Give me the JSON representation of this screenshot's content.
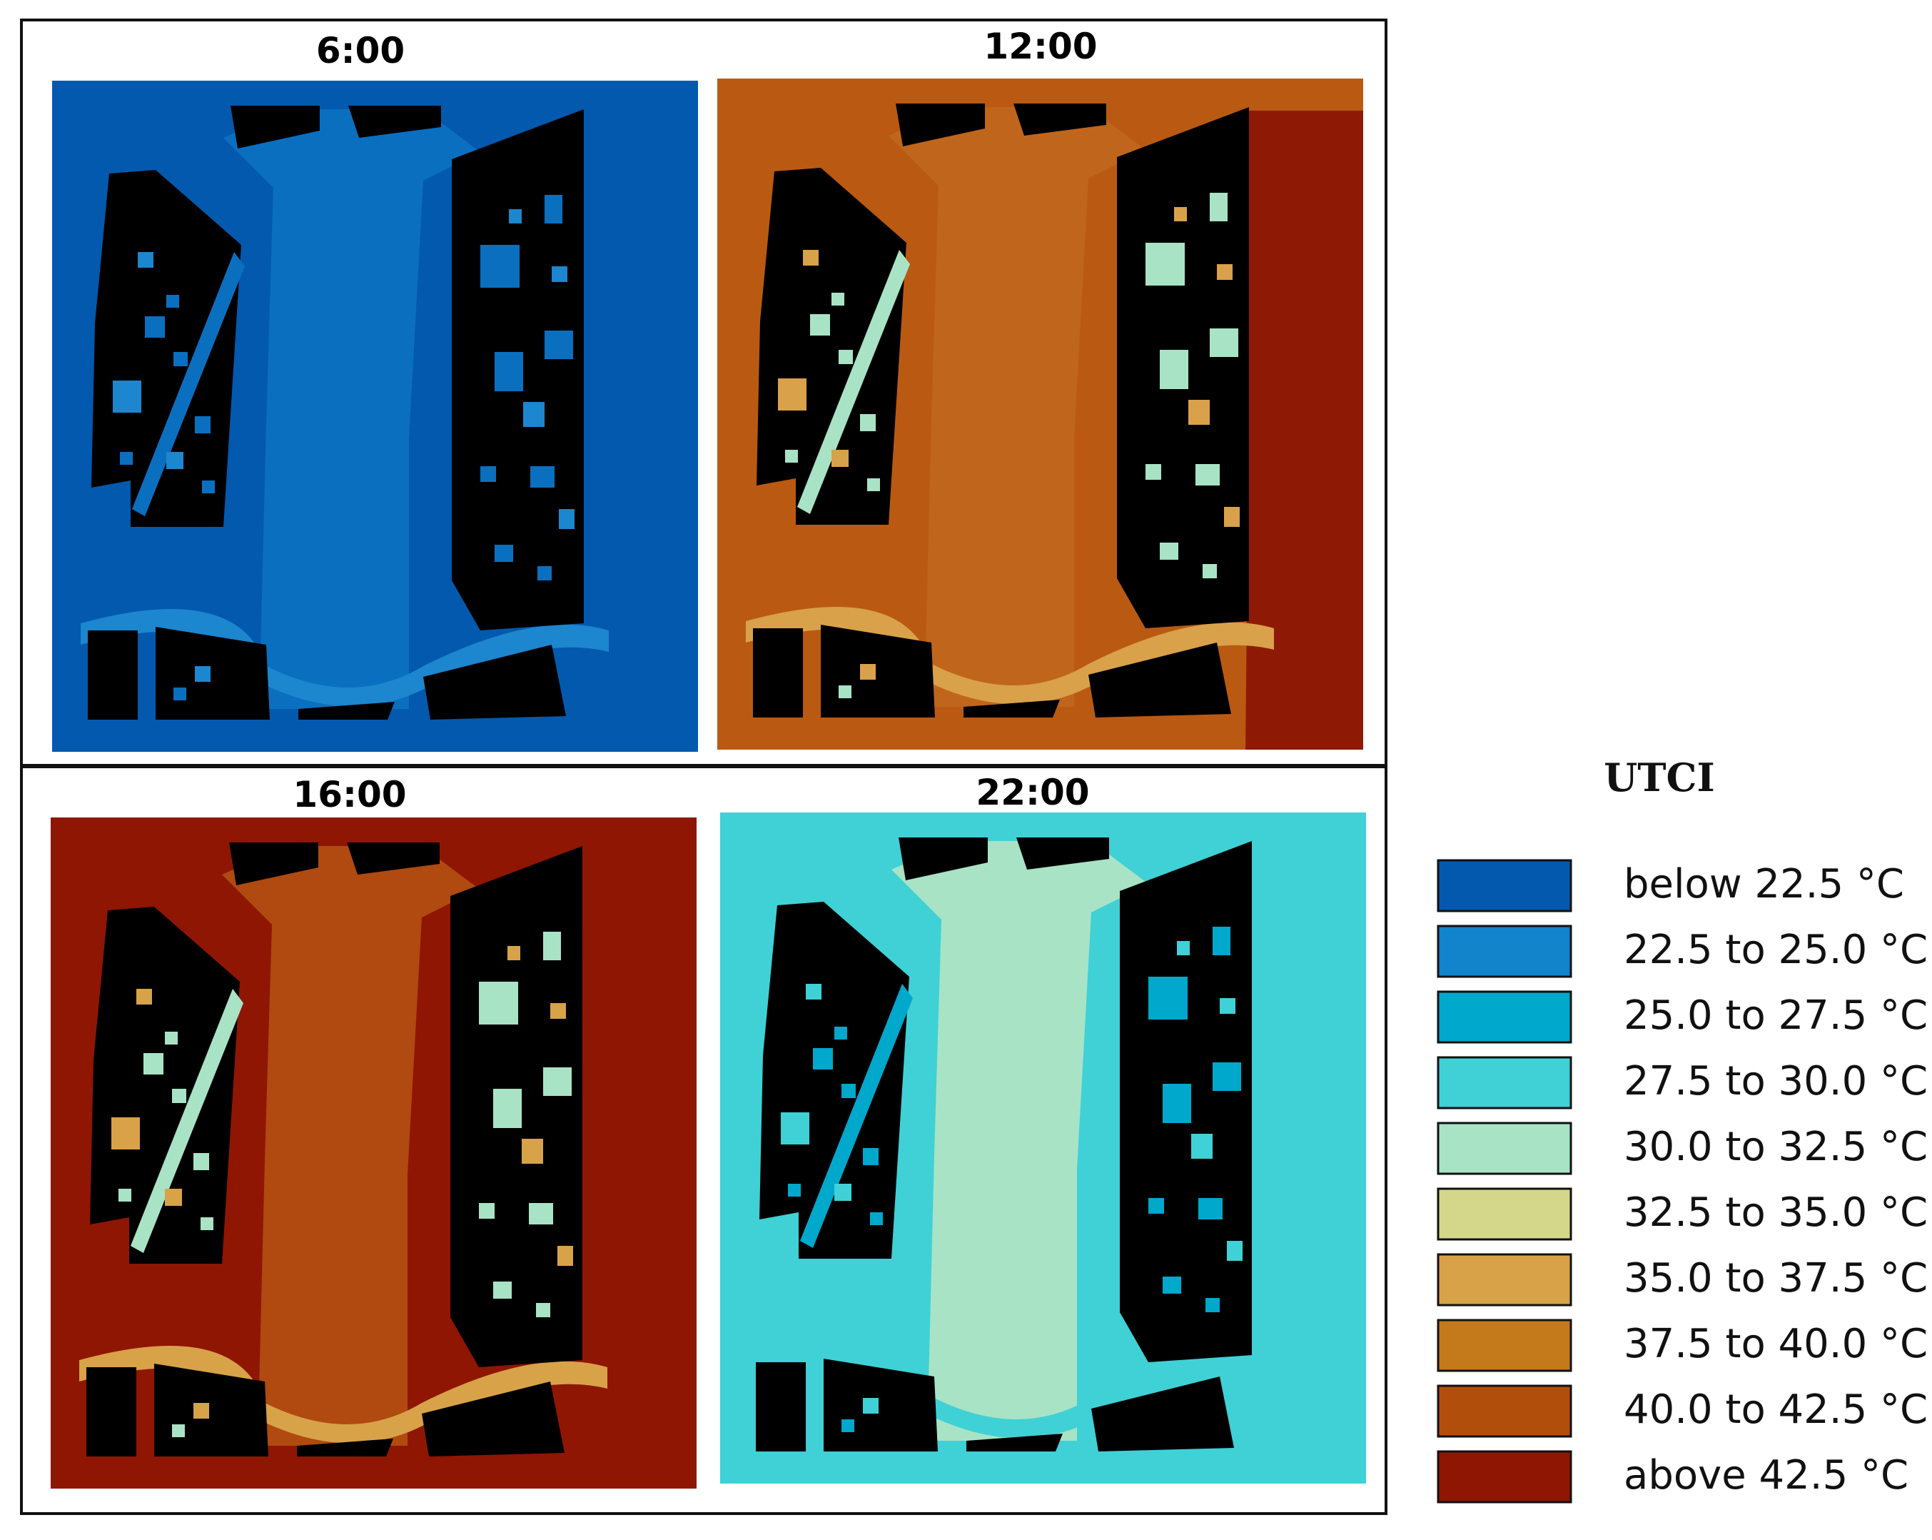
{
  "panels": [
    {
      "time": "6:00",
      "background": "#0359ae",
      "primary": "#0b6fc0",
      "secondary": "#1c86cf",
      "accent": "#0b6fc0"
    },
    {
      "time": "12:00",
      "background": "#ba5a12",
      "primary": "#c0661c",
      "secondary": "#d9a14a",
      "accent": "#a8e3c6",
      "hot": "#8e1a06"
    },
    {
      "time": "16:00",
      "background": "#8f1603",
      "primary": "#b04a10",
      "secondary": "#d8a248",
      "accent": "#a8e3c6"
    },
    {
      "time": "22:00",
      "background": "#3fd1d6",
      "primary": "#a8e3c6",
      "secondary": "#3fd1d6",
      "accent": "#00a8cc"
    }
  ],
  "legend": {
    "title": "UTCI",
    "items": [
      {
        "label": "below 22.5 °C",
        "color": "#0359ae"
      },
      {
        "label": "22.5 to 25.0 °C",
        "color": "#1184cc"
      },
      {
        "label": "25.0 to 27.5 °C",
        "color": "#00a8cc"
      },
      {
        "label": "27.5 to 30.0 °C",
        "color": "#3fd1d6"
      },
      {
        "label": "30.0 to 32.5 °C",
        "color": "#a8e3c6"
      },
      {
        "label": "32.5 to 35.0 °C",
        "color": "#d4d68a"
      },
      {
        "label": "35.0 to 37.5 °C",
        "color": "#d8a248"
      },
      {
        "label": "37.5 to 40.0 °C",
        "color": "#c47a1a"
      },
      {
        "label": "40.0 to 42.5 °C",
        "color": "#b24e0c"
      },
      {
        "label": "above 42.5 °C",
        "color": "#8f1603"
      }
    ]
  }
}
